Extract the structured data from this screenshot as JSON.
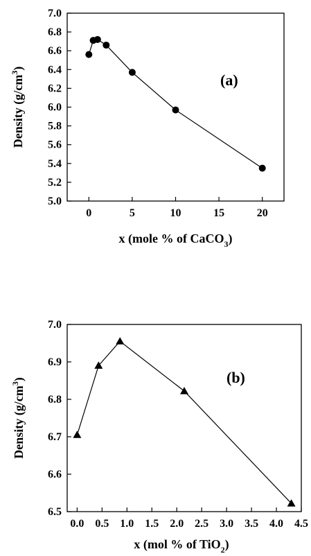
{
  "chart_data": [
    {
      "type": "line",
      "panel_label": "(a)",
      "xlabel_main": "x (mole % of CaCO",
      "xlabel_sub": "3",
      "xlabel_end": ")",
      "ylabel_main": "Density (g/cm",
      "ylabel_sup": "3",
      "ylabel_end": ")",
      "xlim": [
        -2.5,
        22.5
      ],
      "ylim": [
        5.0,
        7.0
      ],
      "xticks": [
        0,
        5,
        10,
        15,
        20
      ],
      "xtick_labels": [
        "0",
        "5",
        "10",
        "15",
        "20"
      ],
      "yticks": [
        5.0,
        5.2,
        5.4,
        5.6,
        5.8,
        6.0,
        6.2,
        6.4,
        6.6,
        6.8,
        7.0
      ],
      "ytick_labels": [
        "5.0",
        "5.2",
        "5.4",
        "5.6",
        "5.8",
        "6.0",
        "6.2",
        "6.4",
        "6.6",
        "6.8",
        "7.0"
      ],
      "marker": "circle",
      "series": [
        {
          "x": [
            0,
            0.5,
            1,
            2,
            5,
            10,
            20
          ],
          "y": [
            6.56,
            6.71,
            6.72,
            6.66,
            6.37,
            5.97,
            5.35
          ]
        }
      ]
    },
    {
      "type": "line",
      "panel_label": "(b)",
      "xlabel_main": "x (mol % of TiO",
      "xlabel_sub": "2",
      "xlabel_end": ")",
      "ylabel_main": "Density (g/cm",
      "ylabel_sup": "3",
      "ylabel_end": ")",
      "xlim": [
        -0.2,
        4.5
      ],
      "ylim": [
        6.5,
        7.0
      ],
      "xticks": [
        0.0,
        0.5,
        1.0,
        1.5,
        2.0,
        2.5,
        3.0,
        3.5,
        4.0,
        4.5
      ],
      "xtick_labels": [
        "0.0",
        "0.5",
        "1.0",
        "1.5",
        "2.0",
        "2.5",
        "3.0",
        "3.5",
        "4.0",
        "4.5"
      ],
      "yticks": [
        6.5,
        6.6,
        6.7,
        6.8,
        6.9,
        7.0
      ],
      "ytick_labels": [
        "6.5",
        "6.6",
        "6.7",
        "6.8",
        "6.9",
        "7.0"
      ],
      "marker": "triangle",
      "series": [
        {
          "x": [
            0.0,
            0.43,
            0.86,
            2.15,
            4.3
          ],
          "y": [
            6.705,
            6.89,
            6.955,
            6.822,
            6.522
          ]
        }
      ]
    }
  ]
}
